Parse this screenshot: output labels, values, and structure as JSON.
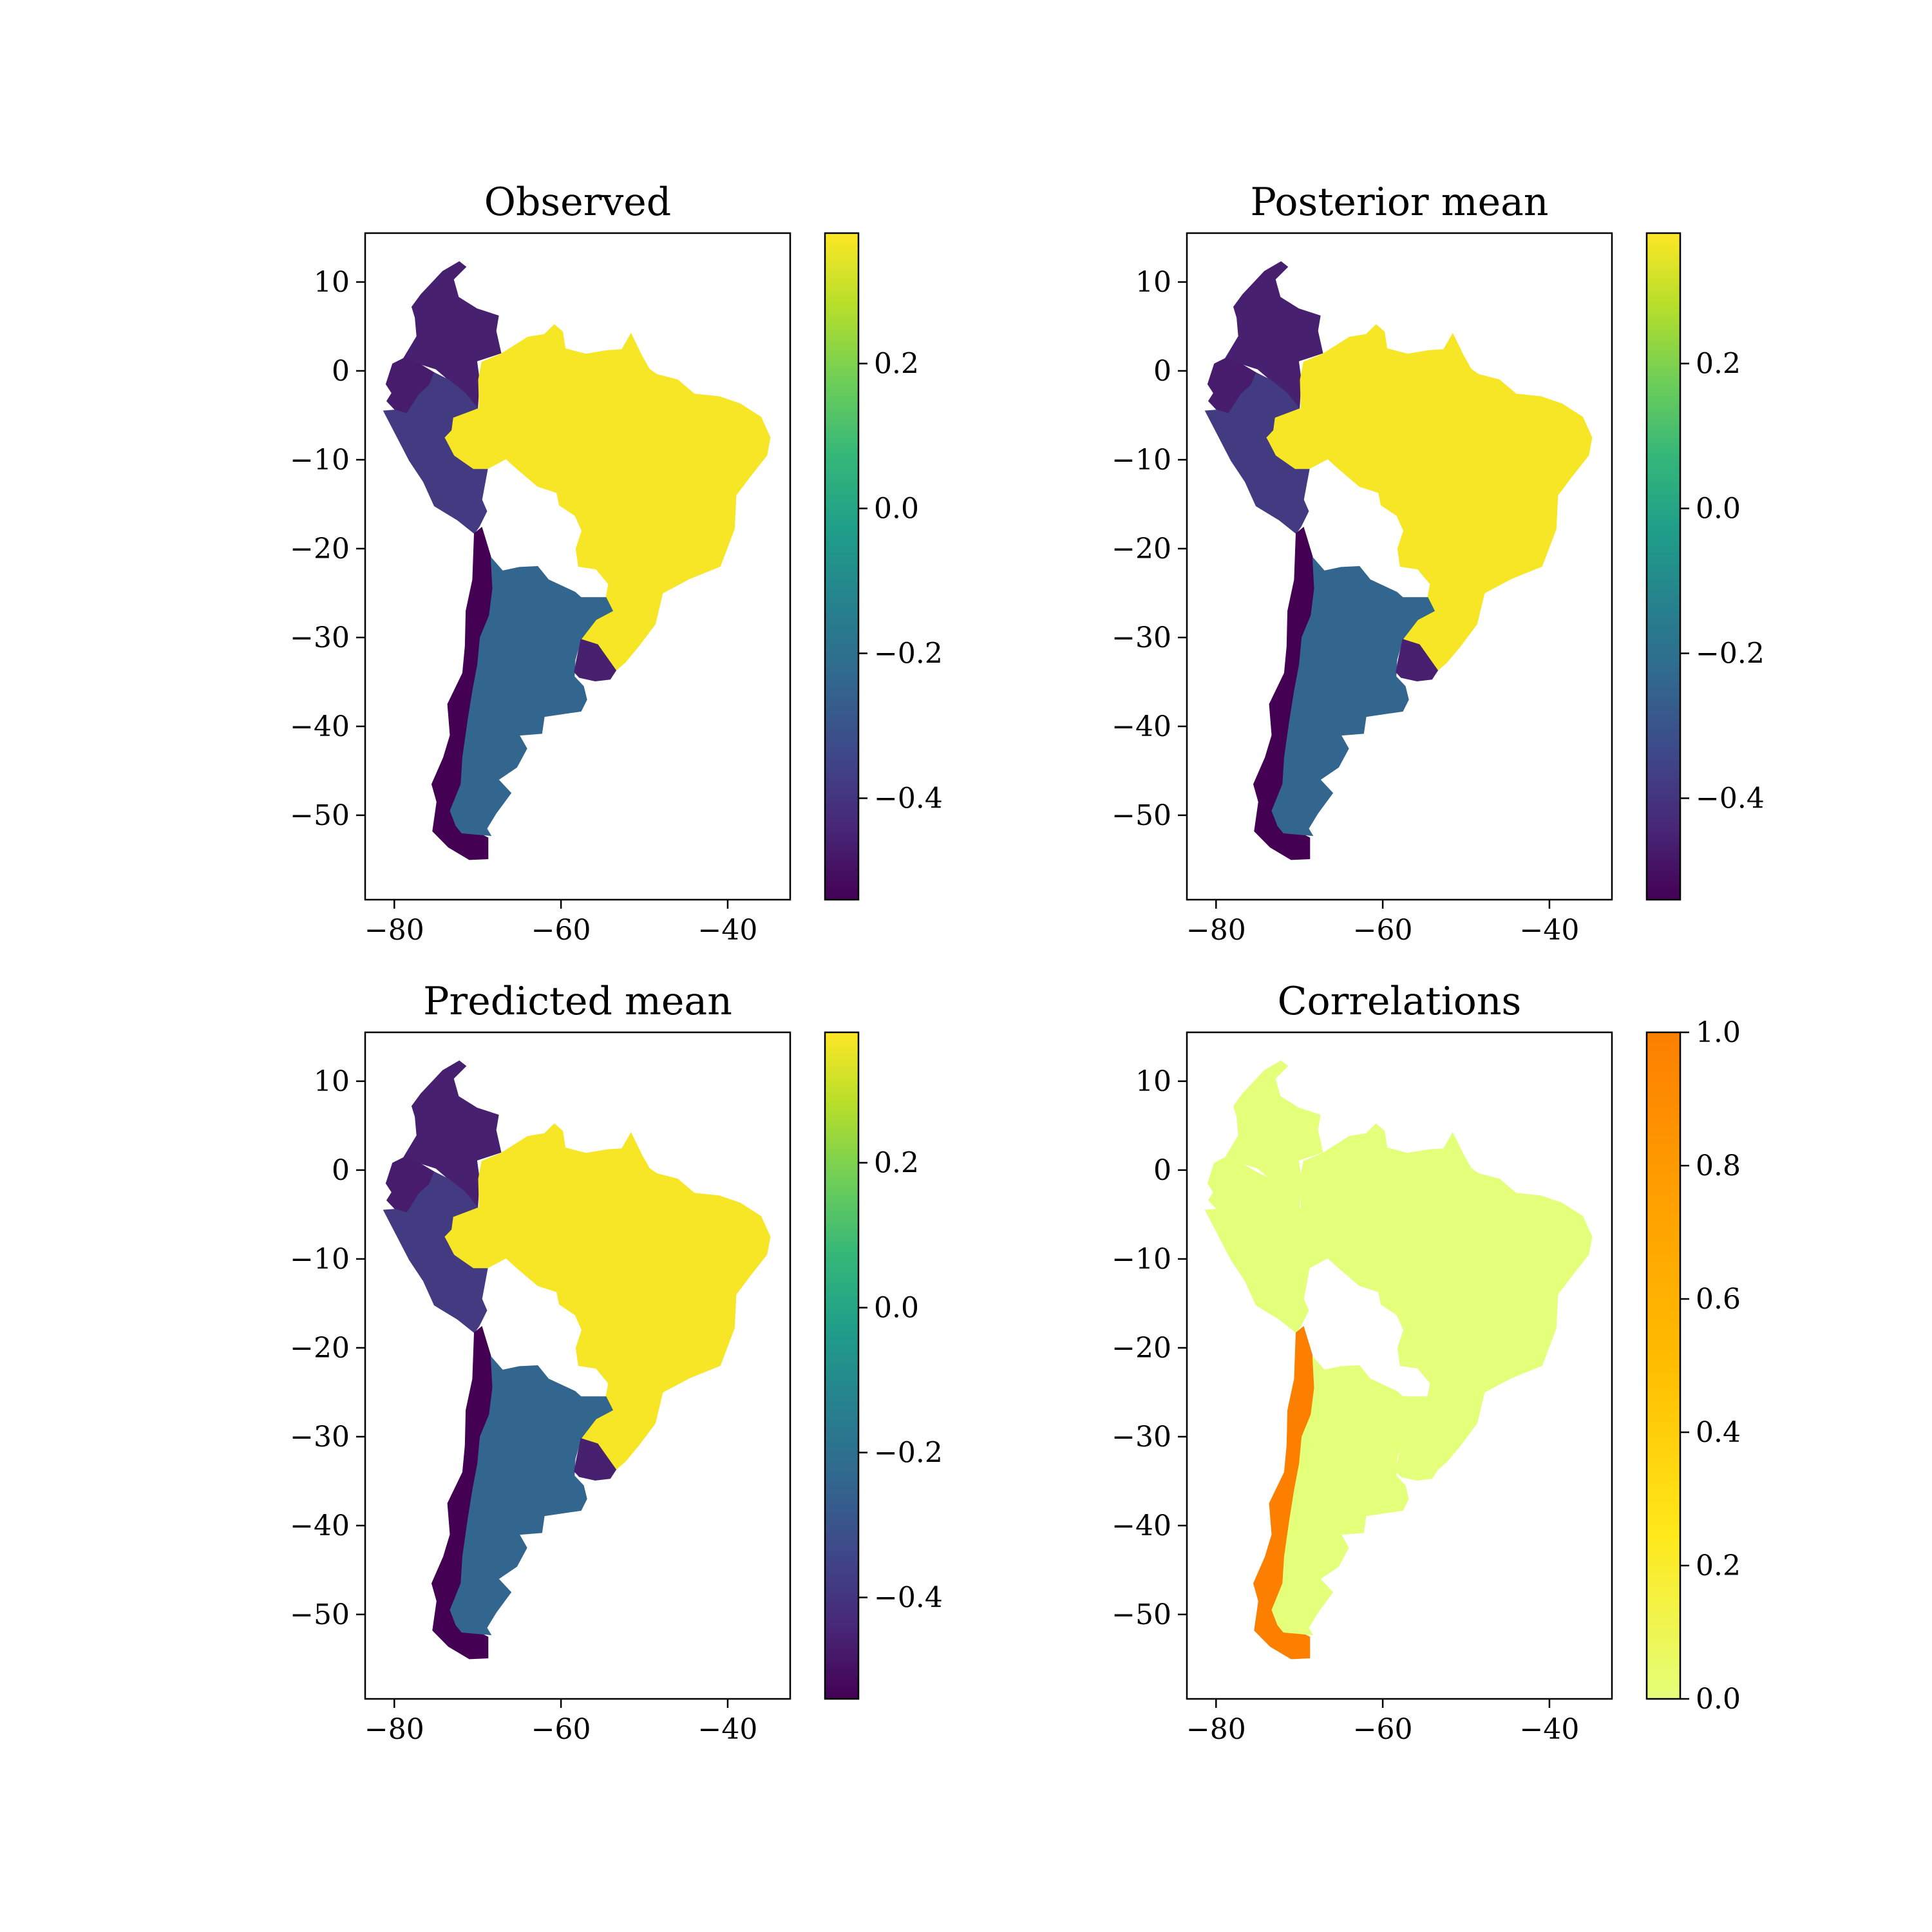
{
  "chart_data": [
    {
      "type": "choropleth",
      "title": "Observed",
      "xticks": [
        -80,
        -60,
        -40
      ],
      "yticks": [
        10,
        0,
        -10,
        -20,
        -30,
        -40,
        -50
      ],
      "xlim": [
        -83.5,
        -32.5
      ],
      "ylim": [
        -59.5,
        15.5
      ],
      "colormap": "viridis",
      "colorbar_range": [
        -0.54,
        0.38
      ],
      "colorbar_ticks": [
        0.2,
        0.0,
        -0.2,
        -0.4
      ],
      "regions": [
        {
          "id": "colombia",
          "value": -0.46
        },
        {
          "id": "ecuador",
          "value": -0.47
        },
        {
          "id": "peru",
          "value": -0.38
        },
        {
          "id": "brazil",
          "value": 0.37
        },
        {
          "id": "chile",
          "value": -0.54
        },
        {
          "id": "argentina",
          "value": -0.24
        },
        {
          "id": "uruguay",
          "value": -0.46
        }
      ]
    },
    {
      "type": "choropleth",
      "title": "Posterior mean",
      "xticks": [
        -80,
        -60,
        -40
      ],
      "yticks": [
        10,
        0,
        -10,
        -20,
        -30,
        -40,
        -50
      ],
      "xlim": [
        -83.5,
        -32.5
      ],
      "ylim": [
        -59.5,
        15.5
      ],
      "colormap": "viridis",
      "colorbar_range": [
        -0.54,
        0.38
      ],
      "colorbar_ticks": [
        0.2,
        0.0,
        -0.2,
        -0.4
      ],
      "regions": [
        {
          "id": "colombia",
          "value": -0.46
        },
        {
          "id": "ecuador",
          "value": -0.47
        },
        {
          "id": "peru",
          "value": -0.38
        },
        {
          "id": "brazil",
          "value": 0.37
        },
        {
          "id": "chile",
          "value": -0.54
        },
        {
          "id": "argentina",
          "value": -0.24
        },
        {
          "id": "uruguay",
          "value": -0.46
        }
      ]
    },
    {
      "type": "choropleth",
      "title": "Predicted mean",
      "xticks": [
        -80,
        -60,
        -40
      ],
      "yticks": [
        10,
        0,
        -10,
        -20,
        -30,
        -40,
        -50
      ],
      "xlim": [
        -83.5,
        -32.5
      ],
      "ylim": [
        -59.5,
        15.5
      ],
      "colormap": "viridis",
      "colorbar_range": [
        -0.54,
        0.38
      ],
      "colorbar_ticks": [
        0.2,
        0.0,
        -0.2,
        -0.4
      ],
      "regions": [
        {
          "id": "colombia",
          "value": -0.46
        },
        {
          "id": "ecuador",
          "value": -0.47
        },
        {
          "id": "peru",
          "value": -0.38
        },
        {
          "id": "brazil",
          "value": 0.37
        },
        {
          "id": "chile",
          "value": -0.54
        },
        {
          "id": "argentina",
          "value": -0.24
        },
        {
          "id": "uruguay",
          "value": -0.46
        }
      ]
    },
    {
      "type": "choropleth",
      "title": "Correlations",
      "xticks": [
        -80,
        -60,
        -40
      ],
      "yticks": [
        10,
        0,
        -10,
        -20,
        -30,
        -40,
        -50
      ],
      "xlim": [
        -83.5,
        -32.5
      ],
      "ylim": [
        -59.5,
        15.5
      ],
      "colormap": "Wistia",
      "colorbar_range": [
        0.0,
        1.0
      ],
      "colorbar_ticks": [
        1.0,
        0.8,
        0.6,
        0.4,
        0.2,
        0.0
      ],
      "regions": [
        {
          "id": "colombia",
          "value": 0.0
        },
        {
          "id": "ecuador",
          "value": 0.0
        },
        {
          "id": "peru",
          "value": 0.0
        },
        {
          "id": "brazil",
          "value": 0.0
        },
        {
          "id": "chile",
          "value": 1.0
        },
        {
          "id": "argentina",
          "value": 0.0
        },
        {
          "id": "uruguay",
          "value": 0.0
        }
      ]
    }
  ]
}
